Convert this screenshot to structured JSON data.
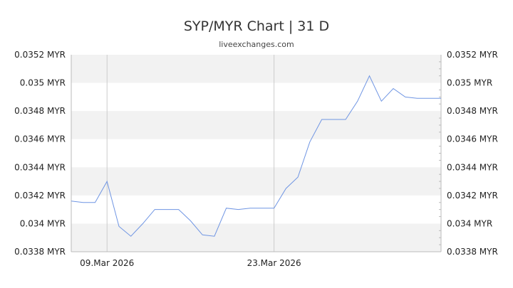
{
  "title": "SYP/MYR Chart | 31 D",
  "subtitle": "liveexchanges.com",
  "colors": {
    "line": "#6f95e3",
    "band": "#f2f2f2",
    "grid": "#cccccc",
    "axis": "#bbbbbb",
    "text": "#222222"
  },
  "chart_data": {
    "type": "line",
    "title": "SYP/MYR Chart | 31 D",
    "xlabel": "",
    "ylabel": "",
    "ylim": [
      0.0338,
      0.0352
    ],
    "y_ticks": [
      0.0338,
      0.034,
      0.0342,
      0.0344,
      0.0346,
      0.0348,
      0.035,
      0.0352
    ],
    "y_tick_labels": [
      "0.0338 MYR",
      "0.034 MYR",
      "0.0342 MYR",
      "0.0344 MYR",
      "0.0346 MYR",
      "0.0348 MYR",
      "0.035 MYR",
      "0.0352 MYR"
    ],
    "x_tick_labels": [
      {
        "index": 3,
        "label": "09.Mar 2026"
      },
      {
        "index": 17,
        "label": "23.Mar 2026"
      }
    ],
    "grid": "alternating horizontal bands",
    "y_axis_both_sides": true,
    "series": [
      {
        "values": [
          0.03416,
          0.03415,
          0.03415,
          0.0343,
          0.03398,
          0.03391,
          0.034,
          0.0341,
          0.0341,
          0.0341,
          0.03402,
          0.03392,
          0.03391,
          0.03411,
          0.0341,
          0.03411,
          0.03411,
          0.03411,
          0.03425,
          0.03433,
          0.03458,
          0.03474,
          0.03474,
          0.03474,
          0.03487,
          0.03505,
          0.03487,
          0.03496,
          0.0349,
          0.03489,
          0.03489,
          0.03489
        ]
      }
    ]
  }
}
